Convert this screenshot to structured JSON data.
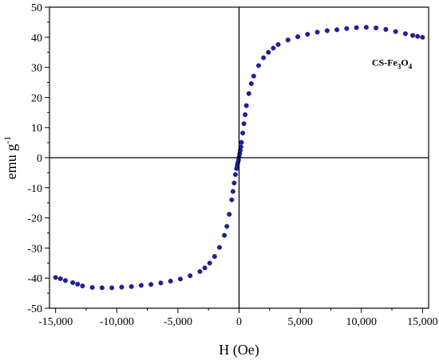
{
  "chart_data": {
    "type": "scatter",
    "title": "",
    "xlabel": "H (Oe)",
    "ylabel": {
      "base": "emu g",
      "sup": "-1"
    },
    "xlim": [
      -15500,
      15500
    ],
    "ylim": [
      -50,
      50
    ],
    "x_ticks": [
      -15000,
      -10000,
      -5000,
      0,
      5000,
      10000,
      15000
    ],
    "x_tick_labels": [
      "-15,000",
      "-10,000",
      "-5,000",
      "0",
      "5,000",
      "10,000",
      "15,000"
    ],
    "y_ticks": [
      -50,
      -40,
      -30,
      -20,
      -10,
      0,
      10,
      20,
      30,
      40,
      50
    ],
    "y_tick_labels": [
      "-50",
      "-40",
      "-30",
      "-20",
      "-10",
      "0",
      "10",
      "20",
      "30",
      "40",
      "50"
    ],
    "grid": false,
    "zero_lines": true,
    "annotation": {
      "parts": [
        "CS-Fe",
        "3",
        "O",
        "4"
      ],
      "x": 12500,
      "y": 30.5
    },
    "marker_color": "#1f1f9e",
    "series": [
      {
        "x": [
          -15000,
          -14600,
          -14200,
          -13600,
          -13200,
          -12800,
          -12000,
          -11200,
          -10400,
          -9600,
          -8800,
          -8000,
          -7200,
          -6400,
          -5600,
          -4800,
          -4000,
          -3200,
          -2800,
          -2400,
          -2000,
          -1600,
          -1200,
          -1000,
          -800,
          -600,
          -500,
          -400,
          -300,
          -200,
          -150,
          -100,
          -50,
          0,
          50,
          100,
          150,
          200,
          300,
          400,
          500,
          600,
          800,
          1000,
          1200,
          1600,
          2000,
          2400,
          2800,
          3200,
          4000,
          4800,
          5600,
          6400,
          7200,
          8000,
          8800,
          9600,
          10400,
          11200,
          12000,
          12800,
          13600,
          14200,
          14600,
          15000
        ],
        "y": [
          -39.8,
          -40.2,
          -40.8,
          -41.5,
          -42.0,
          -42.6,
          -43.1,
          -43.2,
          -43.2,
          -43.0,
          -42.8,
          -42.4,
          -42.1,
          -41.6,
          -41.0,
          -40.3,
          -39.2,
          -37.8,
          -36.6,
          -35.0,
          -32.8,
          -29.8,
          -25.8,
          -22.8,
          -18.8,
          -14.0,
          -11.2,
          -8.4,
          -5.6,
          -3.6,
          -2.6,
          -1.7,
          -0.8,
          0.2,
          1.3,
          2.4,
          3.6,
          5.1,
          8.2,
          11.3,
          14.3,
          17.3,
          21.3,
          24.6,
          27.1,
          30.6,
          33.2,
          35.0,
          36.4,
          37.6,
          39.1,
          40.2,
          41.0,
          41.7,
          42.2,
          42.5,
          42.9,
          43.2,
          43.3,
          43.1,
          42.6,
          41.9,
          41.2,
          40.6,
          40.3,
          40.0
        ]
      }
    ]
  }
}
